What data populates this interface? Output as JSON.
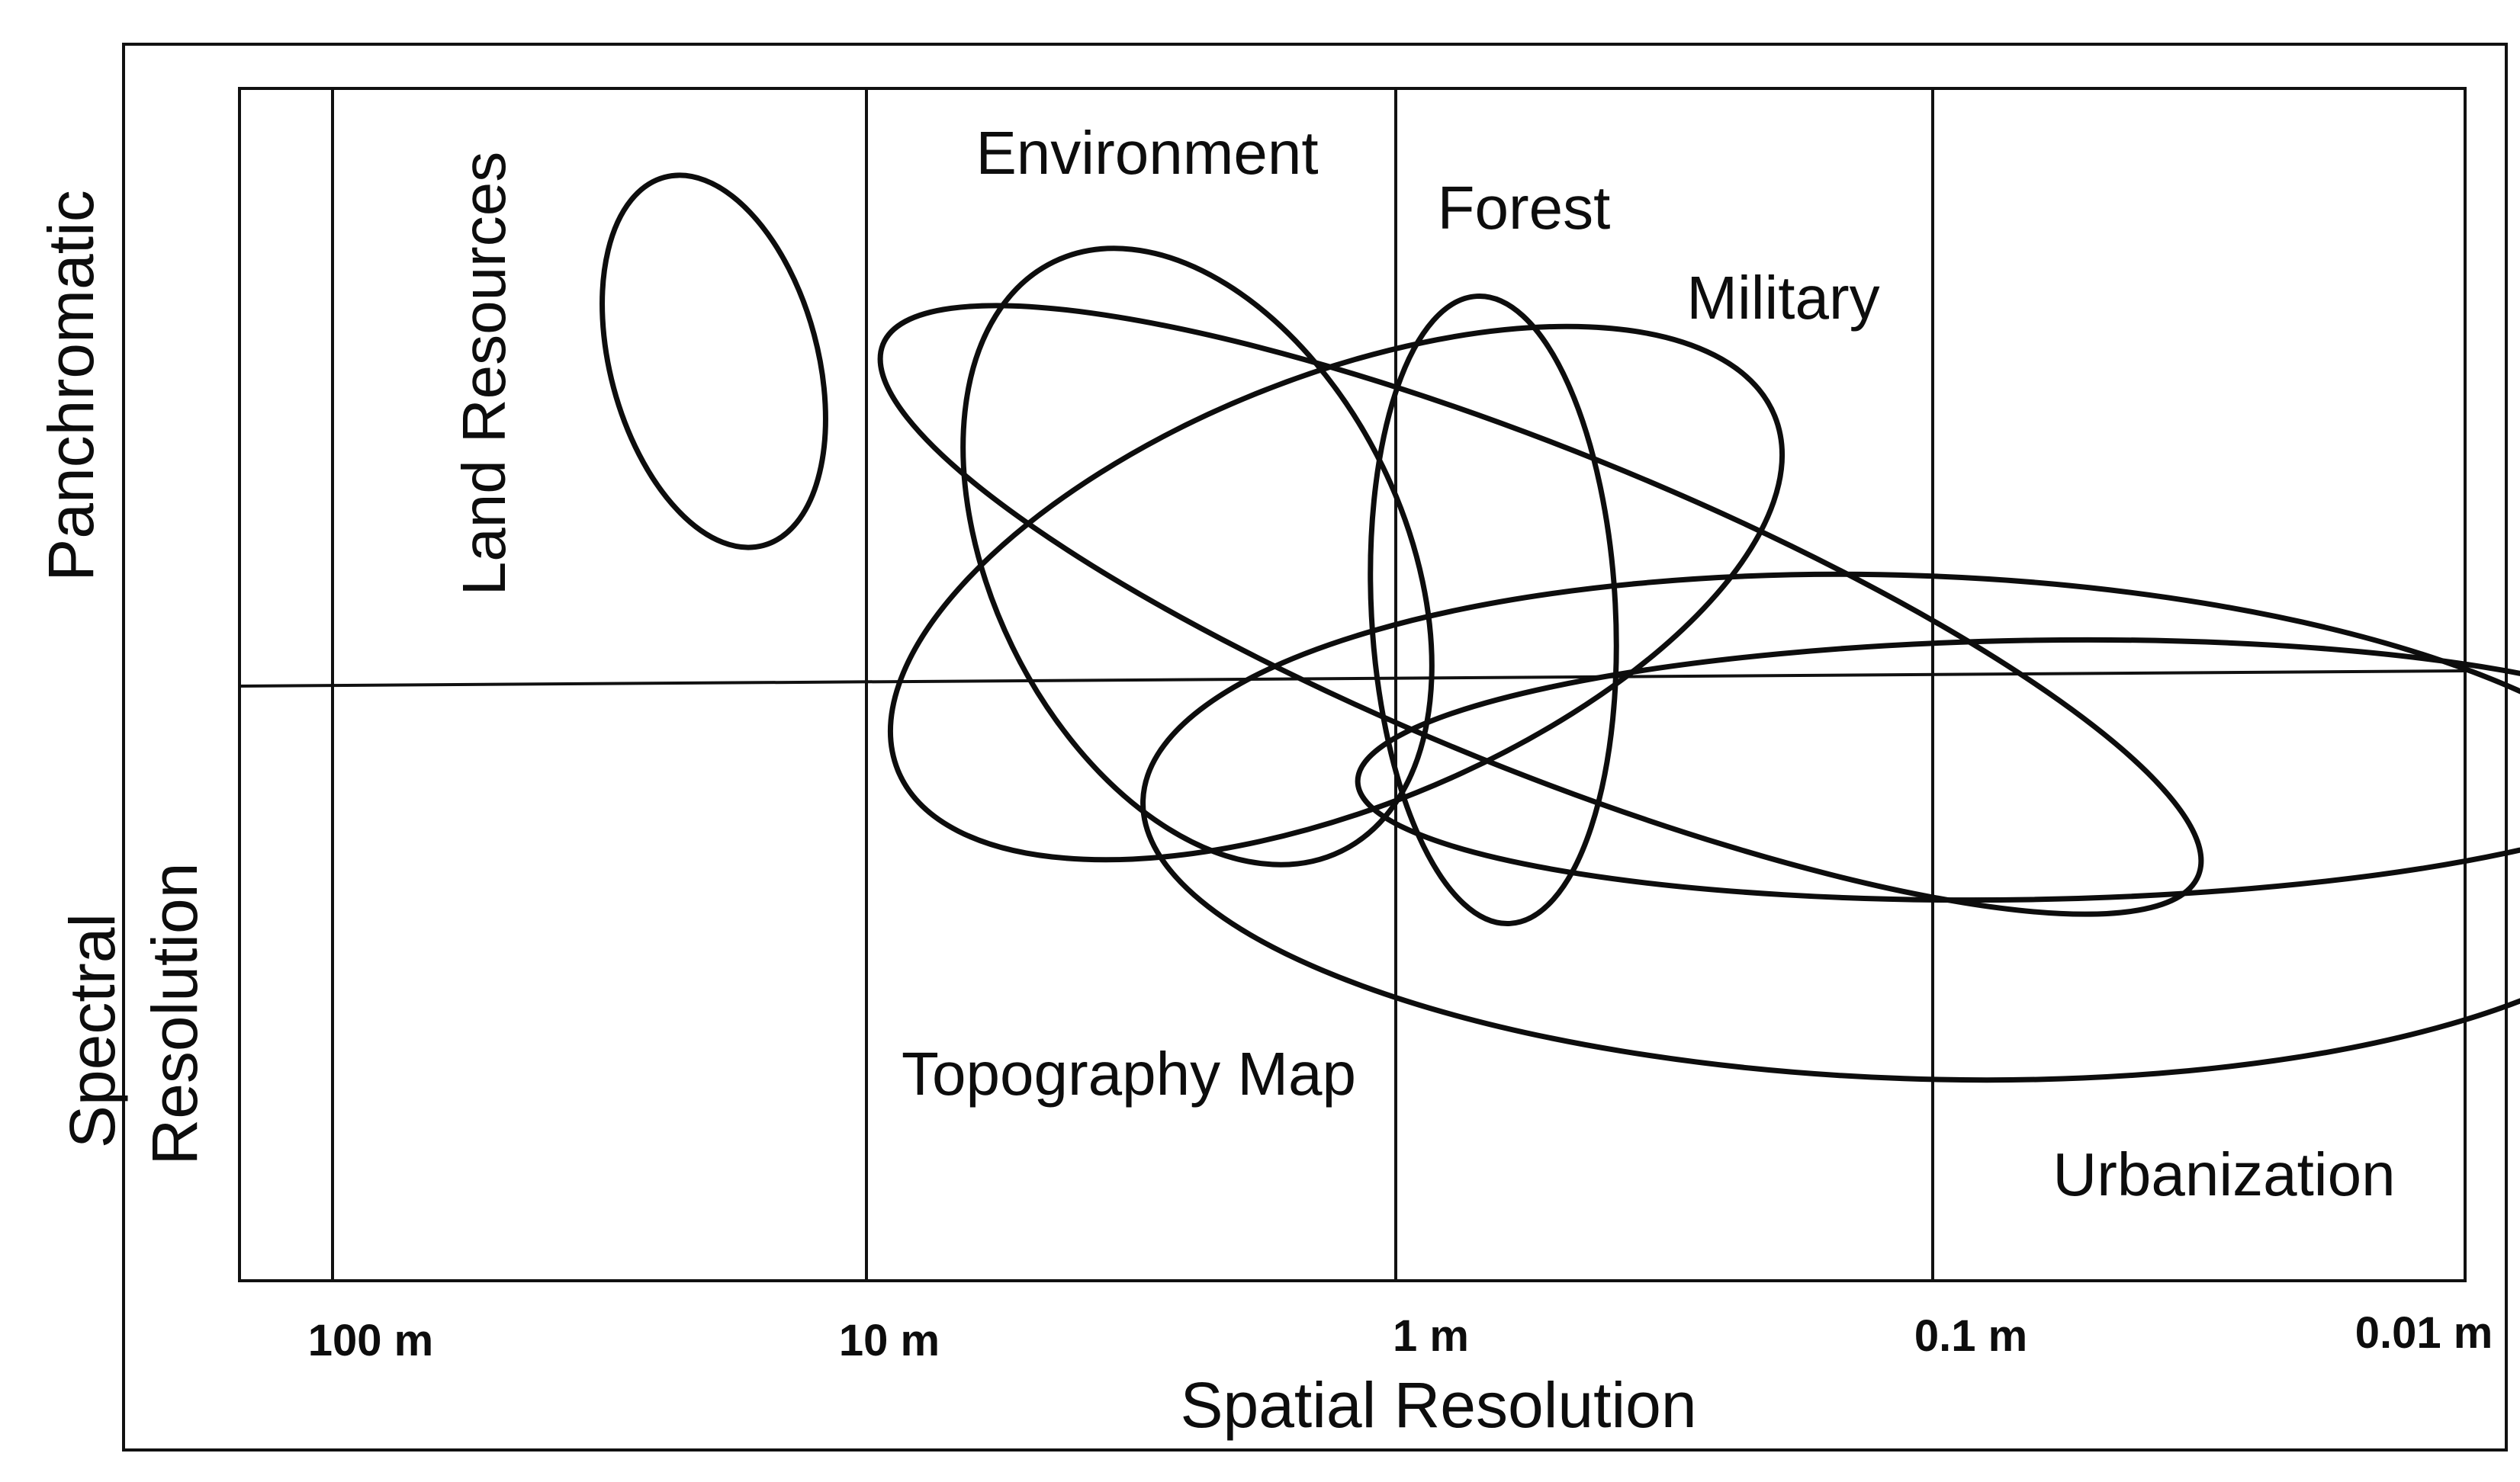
{
  "diagram": {
    "x_axis": {
      "title": "Spatial Resolution",
      "ticks": [
        "100 m",
        "10 m",
        "1 m",
        "0.1 m",
        "0.01 m"
      ]
    },
    "y_axis": {
      "upper_label": "Panchromatic",
      "lower_label_line1": "Spectral",
      "lower_label_line2": "Resolution"
    },
    "regions": {
      "land_resources": "Land Resources",
      "environment": "Environment",
      "forest": "Forest",
      "military": "Military",
      "topography_map": "Topography Map",
      "urbanization": "Urbanization"
    }
  }
}
